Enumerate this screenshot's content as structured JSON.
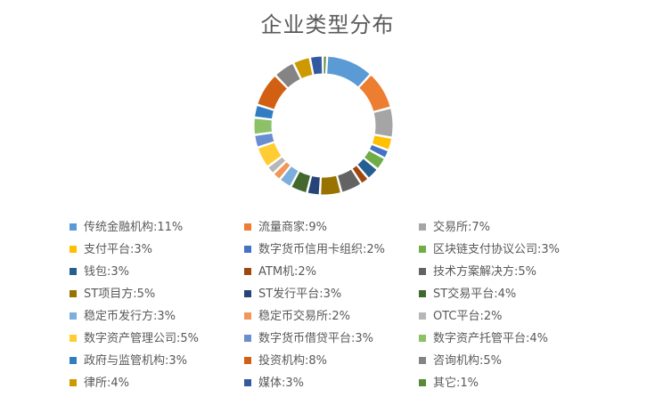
{
  "chart_data": {
    "type": "donut",
    "title": "企业类型分布",
    "legend_position": "bottom",
    "categories": [
      "传统金融机构",
      "流量商家",
      "交易所",
      "支付平台",
      "数字货币信用卡组织",
      "区块链支付协议公司",
      "钱包",
      "ATM机",
      "技术方案解决方",
      "ST项目方",
      "ST发行平台",
      "ST交易平台",
      "稳定币发行方",
      "稳定币交易所",
      "OTC平台",
      "数字资产管理公司",
      "数字货币借贷平台",
      "数字资产托管平台",
      "政府与监管机构",
      "投资机构",
      "咨询机构",
      "律所",
      "媒体",
      "其它"
    ],
    "values": [
      11,
      9,
      7,
      3,
      2,
      3,
      3,
      2,
      5,
      5,
      3,
      4,
      3,
      2,
      2,
      5,
      3,
      4,
      3,
      8,
      5,
      4,
      3,
      1
    ],
    "value_unit": "%",
    "legend_labels": [
      "传统金融机构:11%",
      "流量商家:9%",
      "交易所:7%",
      "支付平台:3%",
      "数字货币信用卡组织:2%",
      "区块链支付协议公司:3%",
      "钱包:3%",
      "ATM机:2%",
      "技术方案解决方:5%",
      "ST项目方:5%",
      "ST发行平台:3%",
      "ST交易平台:4%",
      "稳定币发行方:3%",
      "稳定币交易所:2%",
      "OTC平台:2%",
      "数字资产管理公司:5%",
      "数字货币借贷平台:3%",
      "数字资产托管平台:4%",
      "政府与监管机构:3%",
      "投资机构:8%",
      "咨询机构:5%",
      "律所:4%",
      "媒体:3%",
      "其它:1%"
    ],
    "colors": [
      "#5B9BD5",
      "#ED7D31",
      "#A5A5A5",
      "#FFC000",
      "#4472C4",
      "#70AD47",
      "#255E91",
      "#9E480E",
      "#636363",
      "#997300",
      "#264478",
      "#43682B",
      "#7CAFDD",
      "#F1975A",
      "#B7B7B7",
      "#FFCD33",
      "#698ED0",
      "#8CC168",
      "#327DC2",
      "#D26012",
      "#848484",
      "#CC9A00",
      "#335AA1",
      "#5A8A39"
    ]
  }
}
